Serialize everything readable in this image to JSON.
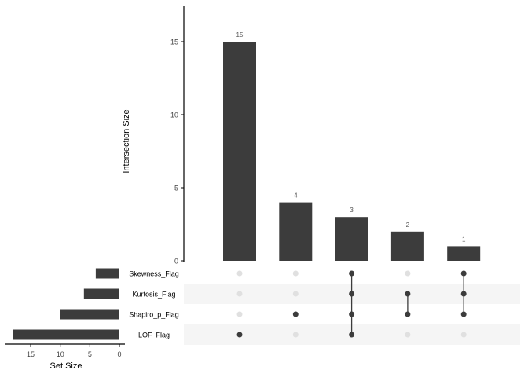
{
  "chart_data": {
    "type": "upset",
    "intersection_axis": {
      "label": "Intersection Size",
      "ylim": [
        0,
        17.4
      ],
      "ticks": [
        0,
        5,
        10,
        15
      ]
    },
    "set_size_axis": {
      "label": "Set Size",
      "xlim": [
        0,
        18
      ],
      "ticks": [
        15,
        10,
        5,
        0
      ]
    },
    "sets": [
      {
        "name": "Skewness_Flag",
        "size": 4
      },
      {
        "name": "Kurtosis_Flag",
        "size": 6
      },
      {
        "name": "Shapiro_p_Flag",
        "size": 10
      },
      {
        "name": "LOF_Flag",
        "size": 18
      }
    ],
    "intersections": [
      {
        "value": 15,
        "label": "15",
        "members": [
          "LOF_Flag"
        ]
      },
      {
        "value": 4,
        "label": "4",
        "members": [
          "Shapiro_p_Flag"
        ]
      },
      {
        "value": 3,
        "label": "3",
        "members": [
          "Skewness_Flag",
          "Kurtosis_Flag",
          "Shapiro_p_Flag",
          "LOF_Flag"
        ]
      },
      {
        "value": 2,
        "label": "2",
        "members": [
          "Kurtosis_Flag",
          "Shapiro_p_Flag"
        ]
      },
      {
        "value": 1,
        "label": "1",
        "members": [
          "Skewness_Flag",
          "Kurtosis_Flag",
          "Shapiro_p_Flag"
        ]
      }
    ],
    "colors": {
      "bar": "#3c3c3c",
      "dot_active": "#3c3c3c",
      "dot_inactive": "#e0e0e0",
      "row_shade": "#f5f5f5"
    }
  }
}
